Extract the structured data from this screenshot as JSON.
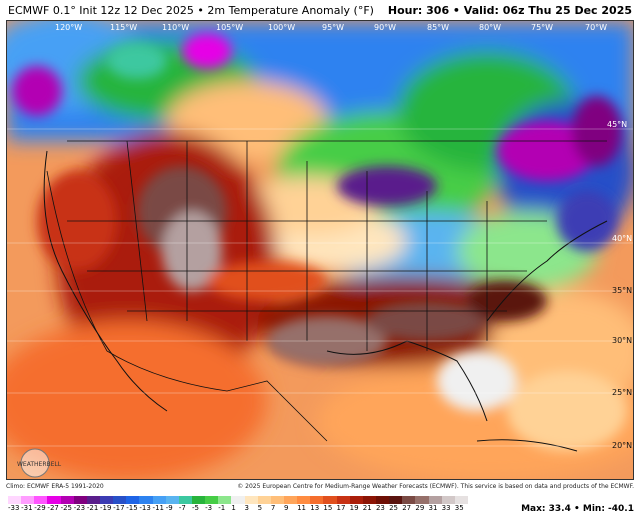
{
  "header": {
    "title": "ECMWF 0.1° Init 12z 12 Dec 2025 • 2m Temperature Anomaly (°F)",
    "hour_label": "Hour: 306 • Valid: 06z Thu 25 Dec 2025"
  },
  "credits": {
    "left": "Climo: ECMWF ERA-5 1991-2020",
    "right": "© 2025 European Centre for Medium-Range Weather Forecasts (ECMWF). This service is based on data and products of the ECMWF."
  },
  "logo": {
    "text": "WEATHERBELL"
  },
  "map": {
    "longitude_labels": [
      "120°W",
      "115°W",
      "110°W",
      "105°W",
      "100°W",
      "95°W",
      "90°W",
      "85°W",
      "80°W",
      "75°W",
      "70°W"
    ],
    "latitude_labels": [
      "45°N",
      "40°N",
      "35°N",
      "30°N",
      "25°N",
      "20°N"
    ]
  },
  "colorbar": {
    "ticks": [
      "-33",
      "-31",
      "-29",
      "-27",
      "-25",
      "-23",
      "-21",
      "-19",
      "-17",
      "-15",
      "-13",
      "-11",
      "-9",
      "-7",
      "-5",
      "-3",
      "-1",
      "1",
      "3",
      "5",
      "7",
      "9",
      "11",
      "13",
      "15",
      "17",
      "19",
      "21",
      "23",
      "25",
      "27",
      "29",
      "31",
      "33",
      "35"
    ],
    "colors": [
      "#ffd7ff",
      "#ff9dff",
      "#ff55ff",
      "#e600e6",
      "#b300b3",
      "#800080",
      "#5a1e8c",
      "#3c3cb4",
      "#2850c8",
      "#1e64e6",
      "#2d82f0",
      "#46a0f5",
      "#5ab4f0",
      "#3cc8a0",
      "#28b43c",
      "#46cd46",
      "#8ce68c",
      "#f0f0f0",
      "#ffe6be",
      "#ffd296",
      "#ffbe78",
      "#ffa55a",
      "#ff8c41",
      "#f56e2d",
      "#e1501e",
      "#c83214",
      "#aa1e0a",
      "#8c1405",
      "#6e0f05",
      "#5a140f",
      "#7a4a44",
      "#96706a",
      "#b4a0a0",
      "#d2c8c8",
      "#e6e1e1"
    ],
    "max_min": "Max: 33.4 • Min: -40.1"
  }
}
